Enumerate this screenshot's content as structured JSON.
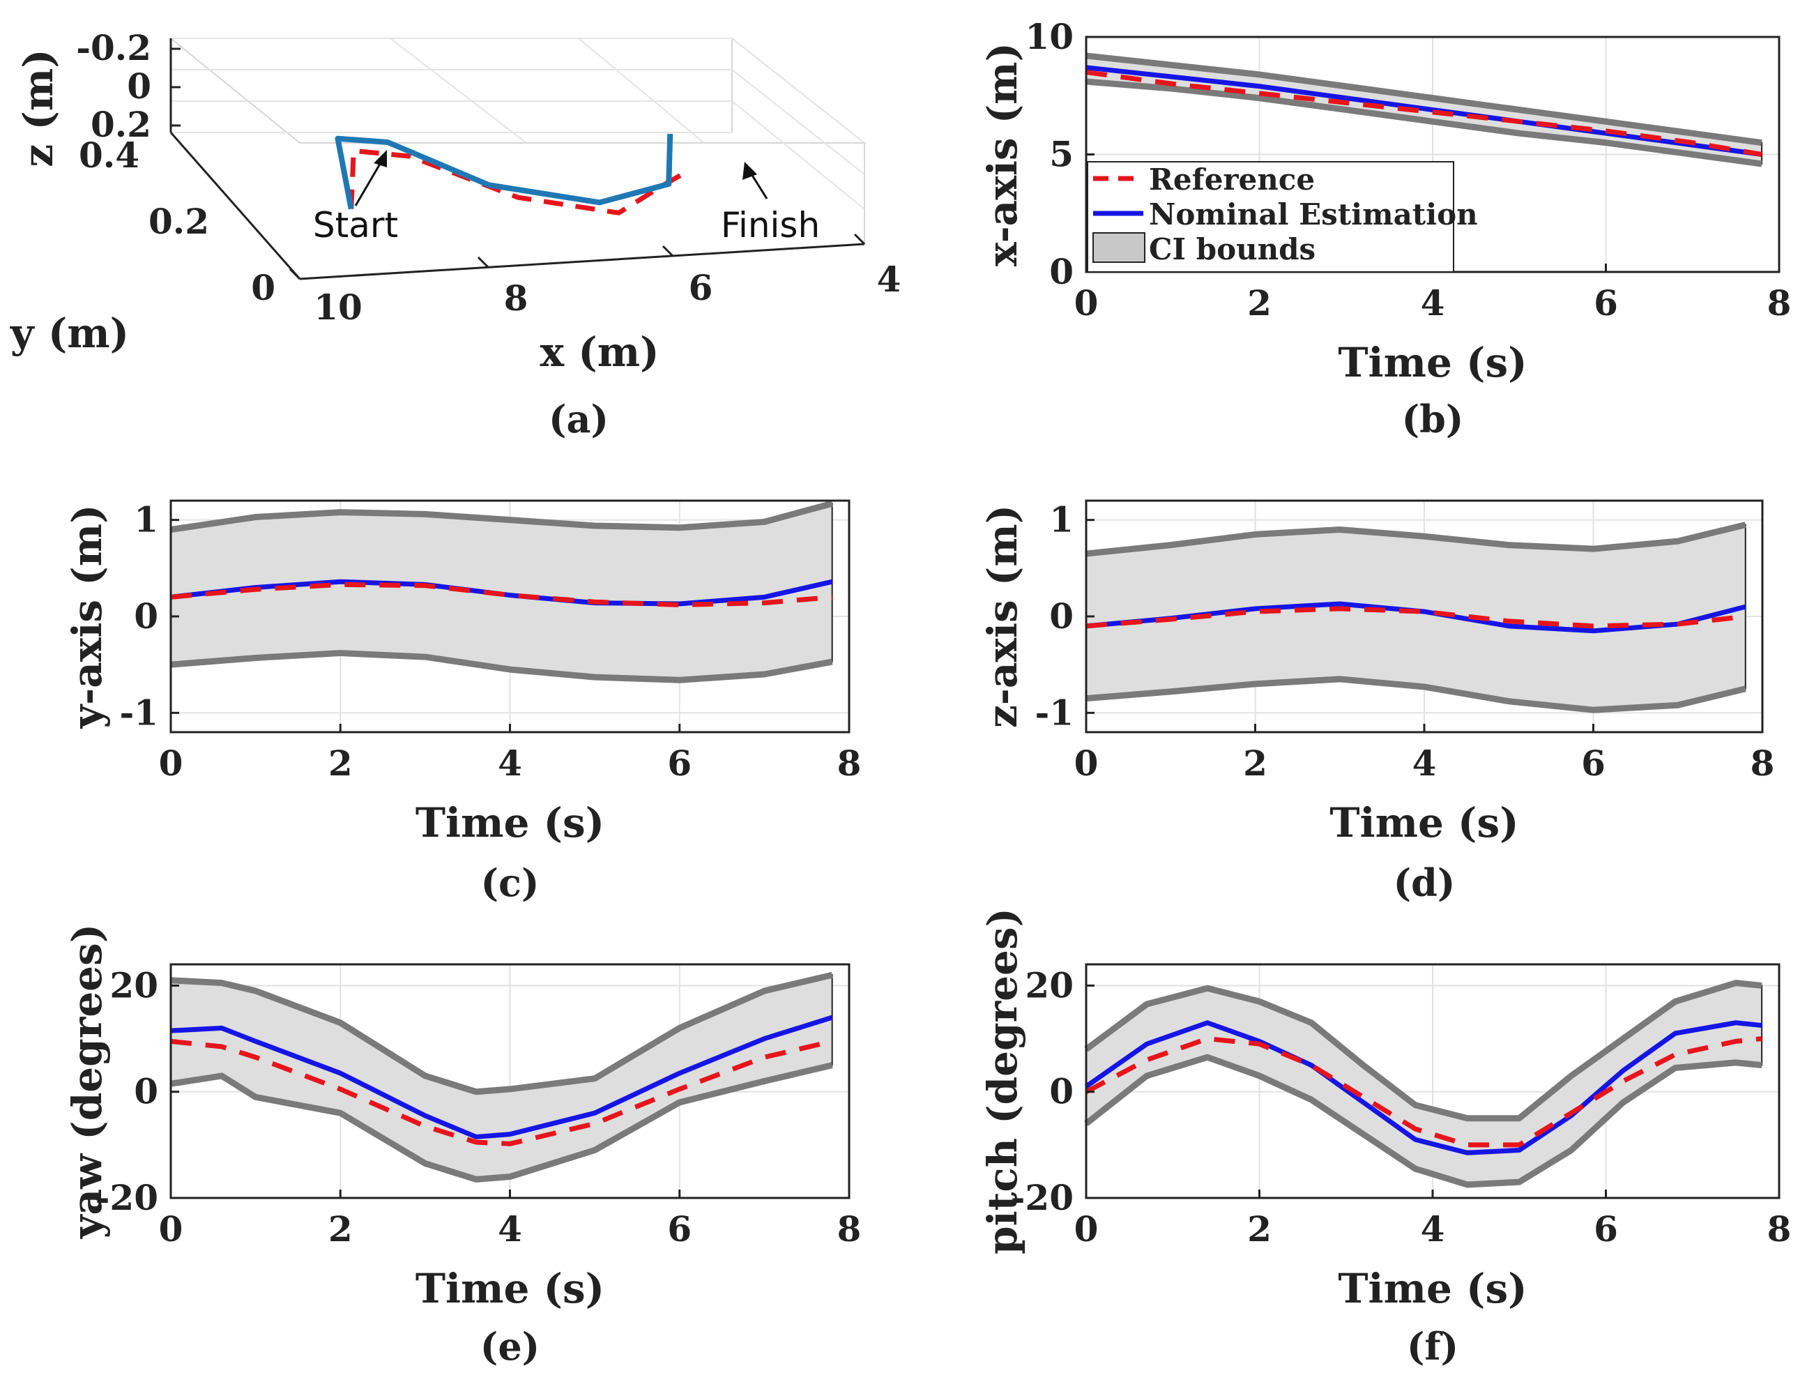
{
  "colors": {
    "reference": "#e8141b",
    "estimation": "#1515e6",
    "trajectory": "#1f78b4",
    "ci_fill": "#dedede",
    "ci_edge": "#7a7a7a",
    "grid": "#e2e2e2"
  },
  "chart_data": [
    {
      "panel": "a",
      "type": "line3d",
      "caption": "(a)",
      "xlabel": "x (m)",
      "ylabel": "y (m)",
      "zlabel": "z (m)",
      "x_ticks": [
        "10",
        "8",
        "6",
        "4"
      ],
      "y_ticks": [
        "0.4",
        "0.2",
        "0"
      ],
      "z_ticks": [
        "-0.2",
        "0",
        "0.2"
      ],
      "annotations": [
        "Start",
        "Finish"
      ],
      "series": [
        {
          "name": "Reference",
          "x": [
            8.7,
            8.4,
            7.8,
            7.0,
            6.2,
            5.6,
            5.1
          ],
          "y": [
            0.22,
            0.3,
            0.3,
            0.2,
            0.12,
            0.16,
            0.22
          ],
          "z": [
            0.1,
            -0.05,
            0.0,
            0.05,
            0.0,
            -0.05,
            0.0
          ]
        },
        {
          "name": "Nominal Estimation",
          "x": [
            8.7,
            8.5,
            7.9,
            7.1,
            6.3,
            5.6,
            4.9
          ],
          "y": [
            0.22,
            0.32,
            0.34,
            0.26,
            0.15,
            0.14,
            0.34
          ],
          "z": [
            0.1,
            -0.08,
            0.0,
            0.1,
            0.0,
            -0.1,
            0.05
          ]
        }
      ]
    },
    {
      "panel": "b",
      "type": "line",
      "caption": "(b)",
      "xlabel": "Time (s)",
      "ylabel": "x-axis (m)",
      "xlim": [
        0,
        8
      ],
      "ylim": [
        0,
        10
      ],
      "xticks": [
        "0",
        "2",
        "4",
        "6",
        "8"
      ],
      "yticks": [
        "0",
        "5",
        "10"
      ],
      "legend": {
        "placement": "lower-left",
        "entries": [
          "Reference",
          "Nominal Estimation",
          "CI bounds"
        ]
      },
      "t": [
        0,
        1,
        2,
        3,
        4,
        5,
        6,
        7,
        7.8
      ],
      "reference": [
        8.5,
        8.0,
        7.6,
        7.2,
        6.8,
        6.4,
        6.0,
        5.5,
        5.0
      ],
      "estimate": [
        8.7,
        8.3,
        7.9,
        7.4,
        6.9,
        6.4,
        5.9,
        5.4,
        5.0
      ],
      "upper": [
        9.2,
        8.8,
        8.4,
        7.9,
        7.4,
        6.9,
        6.4,
        5.9,
        5.5
      ],
      "lower": [
        8.1,
        7.8,
        7.4,
        6.9,
        6.4,
        5.9,
        5.5,
        5.0,
        4.6
      ]
    },
    {
      "panel": "c",
      "type": "line",
      "caption": "(c)",
      "xlabel": "Time (s)",
      "ylabel": "y-axis (m)",
      "xlim": [
        0,
        8
      ],
      "ylim": [
        -1.2,
        1.2
      ],
      "xticks": [
        "0",
        "2",
        "4",
        "6",
        "8"
      ],
      "yticks": [
        "-1",
        "0",
        "1"
      ],
      "t": [
        0,
        1,
        2,
        3,
        4,
        5,
        6,
        7,
        7.8
      ],
      "reference": [
        0.2,
        0.28,
        0.33,
        0.32,
        0.22,
        0.15,
        0.12,
        0.14,
        0.2
      ],
      "estimate": [
        0.2,
        0.3,
        0.36,
        0.33,
        0.22,
        0.14,
        0.13,
        0.2,
        0.36
      ],
      "upper": [
        0.9,
        1.03,
        1.08,
        1.06,
        1.0,
        0.94,
        0.92,
        0.98,
        1.17
      ],
      "lower": [
        -0.5,
        -0.43,
        -0.38,
        -0.42,
        -0.55,
        -0.63,
        -0.66,
        -0.6,
        -0.47
      ]
    },
    {
      "panel": "d",
      "type": "line",
      "caption": "(d)",
      "xlabel": "Time (s)",
      "ylabel": "z-axis (m)",
      "xlim": [
        0,
        8
      ],
      "ylim": [
        -1.2,
        1.2
      ],
      "xticks": [
        "0",
        "2",
        "4",
        "6",
        "8"
      ],
      "yticks": [
        "-1",
        "0",
        "1"
      ],
      "t": [
        0,
        1,
        2,
        3,
        4,
        5,
        6,
        7,
        7.8
      ],
      "reference": [
        -0.1,
        -0.03,
        0.05,
        0.08,
        0.05,
        -0.05,
        -0.1,
        -0.08,
        0.0
      ],
      "estimate": [
        -0.1,
        -0.02,
        0.08,
        0.13,
        0.05,
        -0.1,
        -0.15,
        -0.08,
        0.1
      ],
      "upper": [
        0.65,
        0.74,
        0.85,
        0.9,
        0.83,
        0.74,
        0.7,
        0.78,
        0.95
      ],
      "lower": [
        -0.85,
        -0.78,
        -0.7,
        -0.65,
        -0.73,
        -0.88,
        -0.97,
        -0.92,
        -0.75
      ]
    },
    {
      "panel": "e",
      "type": "line",
      "caption": "(e)",
      "xlabel": "Time (s)",
      "ylabel": "yaw (degrees)",
      "xlim": [
        0,
        8
      ],
      "ylim": [
        -20,
        24
      ],
      "xticks": [
        "0",
        "2",
        "4",
        "6",
        "8"
      ],
      "yticks": [
        "-20",
        "0",
        "20"
      ],
      "t": [
        0,
        0.6,
        1,
        2,
        3,
        3.6,
        4,
        5,
        6,
        7,
        7.8
      ],
      "reference": [
        9.5,
        8.5,
        6.5,
        0.5,
        -6.5,
        -9.5,
        -9.8,
        -6.0,
        0.5,
        6.5,
        9.5
      ],
      "estimate": [
        11.5,
        12.0,
        9.5,
        3.5,
        -4.5,
        -8.5,
        -8.0,
        -4.0,
        3.5,
        10.0,
        14.0
      ],
      "upper": [
        21.0,
        20.5,
        19.0,
        13.0,
        3.0,
        0.0,
        0.5,
        2.5,
        12.0,
        19.0,
        22.0
      ],
      "lower": [
        1.5,
        3.0,
        -1.0,
        -4.0,
        -13.5,
        -16.5,
        -16.0,
        -11.0,
        -2.0,
        2.0,
        5.0
      ]
    },
    {
      "panel": "f",
      "type": "line",
      "caption": "(f)",
      "xlabel": "Time (s)",
      "ylabel": "pitch (degrees)",
      "xlim": [
        0,
        8
      ],
      "ylim": [
        -20,
        24
      ],
      "xticks": [
        "0",
        "2",
        "4",
        "6",
        "8"
      ],
      "yticks": [
        "-20",
        "0",
        "20"
      ],
      "t": [
        0,
        0.7,
        1.4,
        2,
        2.6,
        3.2,
        3.8,
        4.4,
        5.0,
        5.6,
        6.2,
        6.8,
        7.5,
        7.8
      ],
      "reference": [
        0.0,
        6.0,
        10.0,
        9.0,
        5.0,
        -1.0,
        -7.0,
        -10.0,
        -10.0,
        -4.0,
        2.0,
        7.0,
        9.5,
        10.0
      ],
      "estimate": [
        1.0,
        9.0,
        13.0,
        9.5,
        5.0,
        -2.0,
        -9.0,
        -11.5,
        -11.0,
        -4.5,
        4.0,
        11.0,
        13.0,
        12.5
      ],
      "upper": [
        8.0,
        16.5,
        19.5,
        17.0,
        13.0,
        5.0,
        -2.5,
        -5.0,
        -5.0,
        3.0,
        10.0,
        17.0,
        20.5,
        20.0
      ],
      "lower": [
        -6.0,
        3.0,
        6.5,
        3.0,
        -1.5,
        -8.0,
        -14.5,
        -17.5,
        -17.0,
        -11.0,
        -2.0,
        4.5,
        5.5,
        5.0
      ]
    }
  ]
}
